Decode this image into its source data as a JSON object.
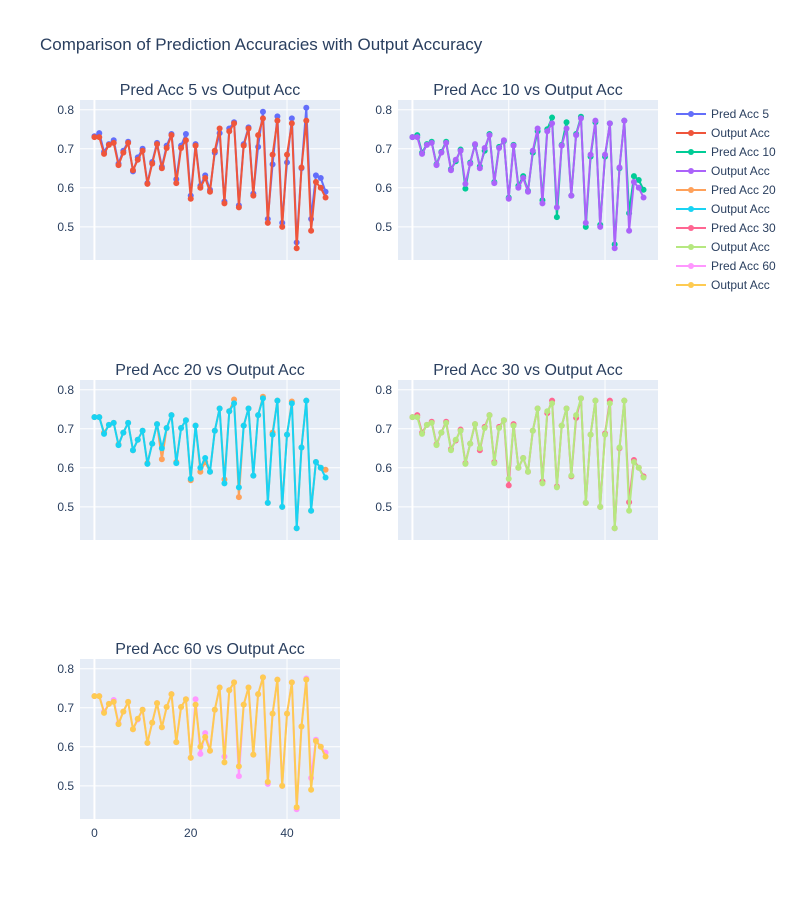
{
  "title": "Comparison of Prediction Accuracies with Output Accuracy",
  "chart_data": {
    "type": "line",
    "layout": "subplots 3x2",
    "x": [
      0,
      1,
      2,
      3,
      4,
      5,
      6,
      7,
      8,
      9,
      10,
      11,
      12,
      13,
      14,
      15,
      16,
      17,
      18,
      19,
      20,
      21,
      22,
      23,
      24,
      25,
      26,
      27,
      28,
      29,
      30,
      31,
      32,
      33,
      34,
      35,
      36,
      37,
      38,
      39,
      40,
      41,
      42,
      43,
      44,
      45,
      46,
      47,
      48
    ],
    "output_acc": [
      0.73,
      0.73,
      0.687,
      0.71,
      0.715,
      0.658,
      0.69,
      0.715,
      0.645,
      0.672,
      0.695,
      0.61,
      0.662,
      0.712,
      0.65,
      0.702,
      0.735,
      0.612,
      0.702,
      0.722,
      0.572,
      0.708,
      0.6,
      0.625,
      0.59,
      0.695,
      0.752,
      0.56,
      0.745,
      0.765,
      0.55,
      0.708,
      0.752,
      0.58,
      0.735,
      0.778,
      0.51,
      0.685,
      0.772,
      0.5,
      0.685,
      0.765,
      0.445,
      0.652,
      0.772,
      0.49,
      0.615,
      0.6,
      0.575
    ],
    "xaxis_ticks": [
      0,
      20,
      40
    ],
    "yaxis_ticks": [
      0.5,
      0.6,
      0.7,
      0.8
    ],
    "yaxis_tick_labels": [
      "0.5",
      "0.6",
      "0.7",
      "0.8"
    ],
    "ylim": [
      0.415,
      0.825
    ],
    "xlim": [
      -3,
      51
    ],
    "legend": {
      "position": "right"
    },
    "subplots": [
      {
        "title": "Pred Acc 5 vs Output Acc",
        "pred_name": "Pred Acc 5",
        "pred_color": "#636efa",
        "out_name": "Output Acc",
        "out_color": "#ef553b",
        "pred": [
          0.732,
          0.74,
          0.692,
          0.712,
          0.722,
          0.662,
          0.695,
          0.718,
          0.642,
          0.678,
          0.7,
          0.612,
          0.666,
          0.715,
          0.654,
          0.708,
          0.738,
          0.622,
          0.708,
          0.738,
          0.58,
          0.712,
          0.605,
          0.632,
          0.595,
          0.69,
          0.74,
          0.565,
          0.752,
          0.768,
          0.555,
          0.712,
          0.755,
          0.585,
          0.705,
          0.795,
          0.52,
          0.66,
          0.783,
          0.51,
          0.665,
          0.778,
          0.46,
          0.65,
          0.805,
          0.52,
          0.632,
          0.625,
          0.59
        ],
        "show_xticks": false
      },
      {
        "title": "Pred Acc 10 vs Output Acc",
        "pred_name": "Pred Acc 10",
        "pred_color": "#00cc96",
        "out_name": "Output Acc",
        "out_color": "#ab63fa",
        "pred": [
          0.73,
          0.735,
          0.69,
          0.712,
          0.718,
          0.66,
          0.692,
          0.718,
          0.648,
          0.668,
          0.698,
          0.598,
          0.665,
          0.71,
          0.655,
          0.695,
          0.738,
          0.615,
          0.705,
          0.72,
          0.575,
          0.71,
          0.605,
          0.63,
          0.592,
          0.69,
          0.745,
          0.568,
          0.75,
          0.78,
          0.525,
          0.71,
          0.768,
          0.58,
          0.738,
          0.782,
          0.5,
          0.68,
          0.768,
          0.505,
          0.68,
          0.765,
          0.455,
          0.65,
          0.772,
          0.535,
          0.63,
          0.62,
          0.595
        ],
        "show_xticks": false
      },
      {
        "title": "Pred Acc 20 vs Output Acc",
        "pred_name": "Pred Acc 20",
        "pred_color": "#ffa15a",
        "out_name": "Output Acc",
        "out_color": "#19d3f3",
        "pred": [
          0.73,
          0.73,
          0.69,
          0.71,
          0.715,
          0.66,
          0.69,
          0.715,
          0.645,
          0.672,
          0.695,
          0.612,
          0.662,
          0.712,
          0.622,
          0.702,
          0.735,
          0.615,
          0.702,
          0.722,
          0.568,
          0.708,
          0.59,
          0.615,
          0.59,
          0.695,
          0.752,
          0.57,
          0.745,
          0.775,
          0.525,
          0.708,
          0.752,
          0.58,
          0.735,
          0.782,
          0.51,
          0.69,
          0.772,
          0.5,
          0.685,
          0.77,
          0.445,
          0.652,
          0.772,
          0.49,
          0.615,
          0.6,
          0.595
        ],
        "show_xticks": false
      },
      {
        "title": "Pred Acc 30 vs Output Acc",
        "pred_name": "Pred Acc 30",
        "pred_color": "#ff6692",
        "out_name": "Output Acc",
        "out_color": "#b6e880",
        "pred": [
          0.73,
          0.735,
          0.69,
          0.71,
          0.718,
          0.66,
          0.69,
          0.718,
          0.648,
          0.67,
          0.698,
          0.612,
          0.662,
          0.712,
          0.645,
          0.705,
          0.735,
          0.615,
          0.705,
          0.722,
          0.555,
          0.712,
          0.6,
          0.625,
          0.59,
          0.695,
          0.752,
          0.565,
          0.74,
          0.772,
          0.552,
          0.708,
          0.752,
          0.578,
          0.728,
          0.778,
          0.51,
          0.685,
          0.772,
          0.5,
          0.688,
          0.772,
          0.445,
          0.65,
          0.772,
          0.512,
          0.62,
          0.6,
          0.578
        ],
        "show_xticks": false
      },
      {
        "title": "Pred Acc 60 vs Output Acc",
        "pred_name": "Pred Acc 60",
        "pred_color": "#ff97ff",
        "out_name": "Output Acc",
        "out_color": "#fecb52",
        "pred": [
          0.73,
          0.73,
          0.69,
          0.71,
          0.72,
          0.66,
          0.69,
          0.715,
          0.645,
          0.67,
          0.695,
          0.61,
          0.662,
          0.712,
          0.65,
          0.702,
          0.735,
          0.612,
          0.702,
          0.722,
          0.572,
          0.722,
          0.582,
          0.635,
          0.59,
          0.695,
          0.752,
          0.575,
          0.745,
          0.765,
          0.525,
          0.708,
          0.752,
          0.58,
          0.735,
          0.778,
          0.505,
          0.685,
          0.772,
          0.5,
          0.685,
          0.765,
          0.44,
          0.652,
          0.775,
          0.52,
          0.618,
          0.6,
          0.585
        ],
        "show_xticks": true
      }
    ]
  }
}
